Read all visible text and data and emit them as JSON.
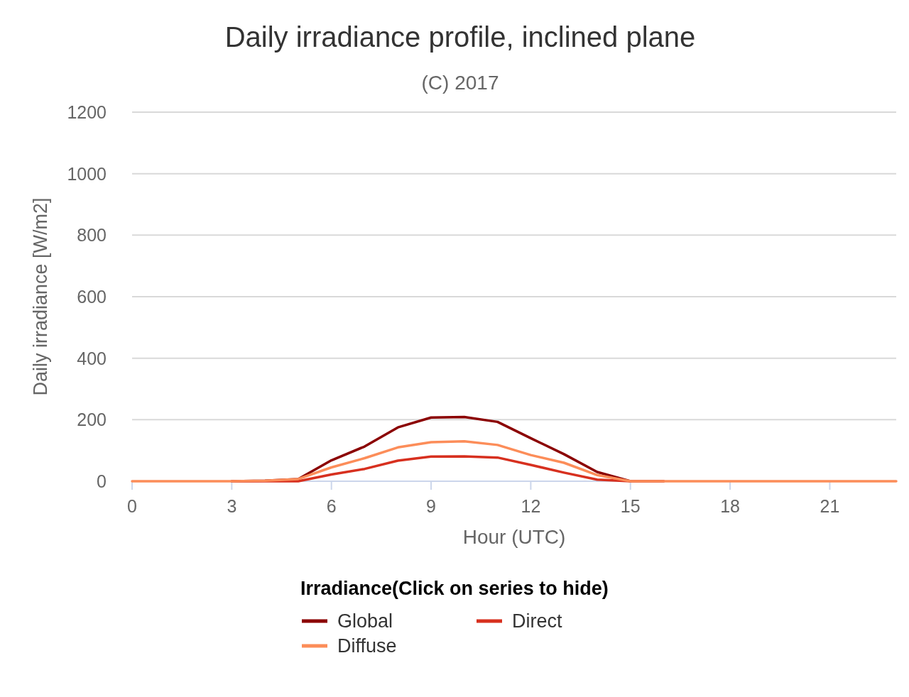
{
  "chart_data": {
    "type": "line",
    "title": "Daily irradiance profile, inclined plane",
    "subtitle": "(C) 2017",
    "xlabel": "Hour (UTC)",
    "ylabel": "Daily irradiance [W/m2]",
    "legend_title": "Irradiance(Click on series to hide)",
    "x": [
      0,
      1,
      2,
      3,
      4,
      5,
      6,
      7,
      8,
      9,
      10,
      11,
      12,
      13,
      14,
      15,
      16,
      17,
      18,
      19,
      20,
      21,
      22,
      23
    ],
    "series": [
      {
        "name": "Global",
        "color": "#8b0000",
        "values": [
          null,
          null,
          null,
          0,
          2,
          7,
          68,
          113,
          175,
          207,
          209,
          193,
          140,
          88,
          30,
          0,
          0,
          null,
          null,
          null,
          null,
          null,
          null,
          null
        ]
      },
      {
        "name": "Direct",
        "color": "#d7301f",
        "values": [
          null,
          null,
          null,
          0,
          0,
          0,
          22,
          40,
          67,
          80,
          81,
          77,
          53,
          28,
          5,
          0,
          0,
          null,
          null,
          null,
          null,
          null,
          null,
          null
        ]
      },
      {
        "name": "Diffuse",
        "color": "#fc8d59",
        "values": [
          0,
          0,
          0,
          0,
          2,
          7,
          45,
          75,
          110,
          127,
          130,
          118,
          85,
          60,
          20,
          0,
          0,
          0,
          0,
          0,
          0,
          0,
          0,
          0
        ]
      }
    ],
    "xlim": [
      0,
      23
    ],
    "xticks": [
      0,
      3,
      6,
      9,
      12,
      15,
      18,
      21
    ],
    "ylim": [
      0,
      1200
    ],
    "yticks": [
      0,
      200,
      400,
      600,
      800,
      1000,
      1200
    ],
    "grid": "y",
    "legend": "bottom",
    "marker": "none",
    "line_style": "solid"
  }
}
